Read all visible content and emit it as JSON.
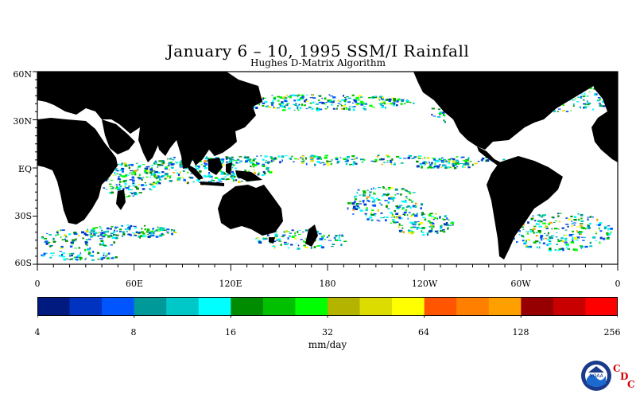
{
  "header": {
    "title": "January 6 – 10, 1995 SSM/I Rainfall",
    "subtitle": "Hughes D-Matrix Algorithm"
  },
  "map": {
    "lat_labels": [
      "60N",
      "30N",
      "EQ",
      "30S",
      "60S"
    ],
    "lon_labels": [
      "0",
      "60E",
      "120E",
      "180",
      "120W",
      "60W",
      "0"
    ],
    "land_color": "#000000",
    "ocean_color": "#ffffff"
  },
  "colorbar": {
    "tick_labels": [
      "4",
      "8",
      "16",
      "32",
      "64",
      "128",
      "256"
    ],
    "units": "mm/day",
    "colors": [
      "#001a80",
      "#0033c0",
      "#0055ff",
      "#009999",
      "#00c8c8",
      "#00ffff",
      "#008c00",
      "#00c000",
      "#00ff00",
      "#b4b400",
      "#dcdc00",
      "#ffff00",
      "#ff5500",
      "#ff7f00",
      "#ffa000",
      "#960000",
      "#c80000",
      "#ff0000"
    ]
  },
  "logo": {
    "text": "NOAA",
    "cdc_letters": [
      "C",
      "D",
      "C"
    ]
  }
}
